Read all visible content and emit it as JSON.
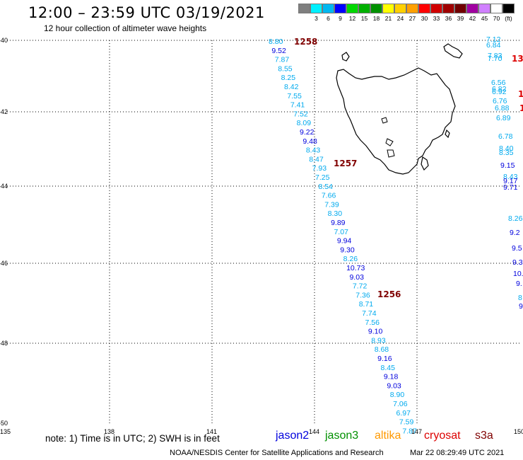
{
  "header": {
    "title": "12:00 – 23:59 UTC 03/19/2021",
    "subtitle": "12 hour collection of altimeter wave heights"
  },
  "legend": {
    "unit": "(ft)",
    "colors": [
      "#7f7f7f",
      "#00f0ff",
      "#00b7f0",
      "#0000ff",
      "#00d800",
      "#00b000",
      "#009000",
      "#ffff00",
      "#ffd000",
      "#ffa000",
      "#ff0000",
      "#d00000",
      "#a00000",
      "#700000",
      "#a000a0",
      "#d080ff",
      "#ffffff",
      "#000000"
    ],
    "labels": [
      "3",
      "6",
      "9",
      "12",
      "15",
      "18",
      "21",
      "24",
      "27",
      "30",
      "33",
      "36",
      "39",
      "42",
      "45",
      "70"
    ]
  },
  "axes": {
    "x_ticks": [
      "135",
      "138",
      "141",
      "144",
      "147",
      "150"
    ],
    "y_ticks": [
      "-40",
      "-42",
      "-44",
      "-46",
      "-48",
      "-50"
    ]
  },
  "tracks": {
    "main_pass_labels": [
      "1258",
      "1257",
      "1256"
    ],
    "main_values": [
      "8.80",
      "9.52",
      "7.87",
      "8.55",
      "8.25",
      "8.42",
      "7.55",
      "7.41",
      "7.52",
      "8.09",
      "9.22",
      "9.48",
      "8.43",
      "8.47",
      "7.93",
      "7.25",
      "8.54",
      "7.66",
      "7.39",
      "8.30",
      "9.89",
      "7.07",
      "9.94",
      "9.30",
      "8.26",
      "10.73",
      "9.03",
      "7.72",
      "7.36",
      "8.71",
      "7.74",
      "7.56",
      "9.10",
      "8.93",
      "8.68",
      "9.16",
      "8.45",
      "9.18",
      "9.03",
      "8.90",
      "7.06",
      "6.97",
      "7.59",
      "7.87"
    ],
    "east_pass_label": "13",
    "east_values": [
      "7.12",
      "6.84",
      "7.83",
      "7.70",
      "6.56",
      "6.82",
      "6.92",
      "6.76",
      "6.88",
      "6.89",
      "6.78",
      "8.40",
      "8.35",
      "9.15",
      "8.43",
      "9.17",
      "9.71",
      "8.26",
      "9.2",
      "9.5",
      "9.3",
      "10.",
      "9.",
      "8",
      "9"
    ],
    "east_fragments": [
      "1",
      "1"
    ]
  },
  "footer": {
    "note": "note: 1) Time is in UTC; 2) SWH is in feet",
    "satellites": [
      {
        "name": "jason2",
        "color": "#0000dd"
      },
      {
        "name": "jason3",
        "color": "#009000"
      },
      {
        "name": "altika",
        "color": "#ff9900"
      },
      {
        "name": "cryosat",
        "color": "#dd0000"
      },
      {
        "name": "s3a",
        "color": "#800000"
      }
    ],
    "credit": "NOAA/NESDIS Center for Satellite Applications and Research",
    "timestamp": "Mar 22 08:29:49 UTC 2021"
  }
}
